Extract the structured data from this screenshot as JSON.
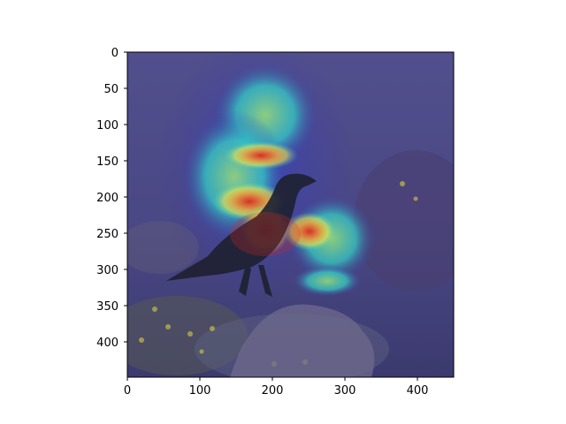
{
  "figure": {
    "x_ticks": [
      "0",
      "100",
      "200",
      "300",
      "400"
    ],
    "y_ticks": [
      "0",
      "50",
      "100",
      "150",
      "200",
      "250",
      "300",
      "350",
      "400"
    ]
  },
  "image": {
    "description_kind": "grad-cam heatmap overlay on photo of a bird on a rock",
    "x_range": [
      0,
      448
    ],
    "y_range": [
      0,
      448
    ],
    "tick_values_x": [
      0,
      100,
      200,
      300,
      400
    ],
    "tick_values_y": [
      0,
      50,
      100,
      150,
      200,
      250,
      300,
      350,
      400
    ],
    "colors": {
      "background_photo": "#4b4a86",
      "heat_low": "#3a3aa8",
      "heat_mid": "#33d6c8",
      "heat_high": "#e0281e",
      "heat_yellow": "#f1e54a",
      "bird": "#1e2030"
    }
  }
}
